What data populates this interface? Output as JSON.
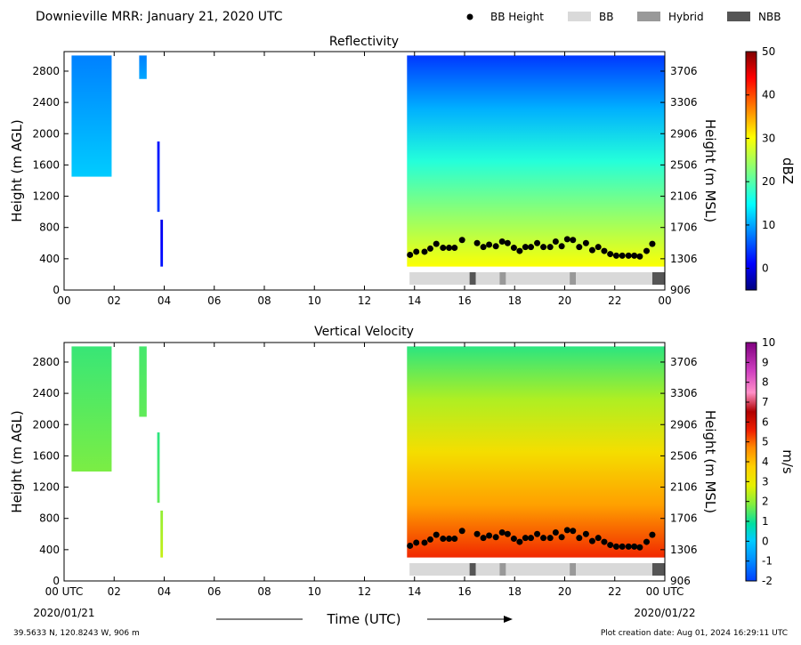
{
  "header": {
    "title": "Downieville MRR:  January 21, 2020 UTC",
    "legend": [
      {
        "label": "BB Height",
        "kind": "dot",
        "color": "#000000"
      },
      {
        "label": "BB",
        "kind": "box",
        "color": "#d9d9d9"
      },
      {
        "label": "Hybrid",
        "kind": "box",
        "color": "#999999"
      },
      {
        "label": "NBB",
        "kind": "box",
        "color": "#555555"
      }
    ]
  },
  "footer": {
    "location": "39.5633 N, 120.8243 W, 906 m",
    "creation": "Plot creation date: Aug 01, 2024 16:29:11 UTC",
    "xlabel": "Time (UTC)",
    "date_start": "2020/01/21",
    "date_end": "2020/01/22"
  },
  "chart_data": [
    {
      "type": "heatmap",
      "title": "Reflectivity",
      "ylabel": "Height (m AGL)",
      "ylabel_right": "Height (m MSL)",
      "colorbar_label": "dBZ",
      "colorbar_ticks": [
        "50",
        "40",
        "30",
        "20",
        "10",
        "0"
      ],
      "colorbar_range": [
        -5,
        50
      ],
      "colormap": "jet",
      "xlim": [
        0,
        24
      ],
      "ylim": [
        0,
        3050
      ],
      "x_ticks": [
        "00",
        "02",
        "04",
        "06",
        "08",
        "10",
        "12",
        "14",
        "16",
        "18",
        "20",
        "22",
        "00"
      ],
      "y_ticks_left": [
        "0",
        "400",
        "800",
        "1200",
        "1600",
        "2000",
        "2400",
        "2800"
      ],
      "y_ticks_right": [
        "906",
        "1306",
        "1706",
        "2106",
        "2506",
        "2906",
        "3306",
        "3706"
      ],
      "precip_segments": [
        {
          "start": 0.3,
          "end": 1.9,
          "base_m": 1450,
          "top_m": 3000,
          "base_dbz": 12,
          "top_dbz": 8
        },
        {
          "start": 3.0,
          "end": 3.3,
          "base_m": 2700,
          "top_m": 3000,
          "base_dbz": 10,
          "top_dbz": 8
        },
        {
          "start": 3.72,
          "end": 3.82,
          "base_m": 1000,
          "top_m": 1900,
          "base_dbz": 4,
          "top_dbz": 2
        },
        {
          "start": 3.85,
          "end": 3.95,
          "base_m": 300,
          "top_m": 900,
          "base_dbz": 2,
          "top_dbz": 0
        },
        {
          "start": 13.7,
          "end": 24.0,
          "base_m": 300,
          "top_m": 3000,
          "base_dbz": 30,
          "top_dbz": 4
        }
      ],
      "bb_heights": {
        "x": [
          13.82,
          14.07,
          14.4,
          14.63,
          14.87,
          15.14,
          15.38,
          15.6,
          15.9,
          16.5,
          16.75,
          16.98,
          17.25,
          17.5,
          17.72,
          17.97,
          18.2,
          18.43,
          18.65,
          18.9,
          19.15,
          19.42,
          19.64,
          19.88,
          20.1,
          20.33,
          20.58,
          20.85,
          21.1,
          21.34,
          21.58,
          21.82,
          22.06,
          22.3,
          22.55,
          22.78,
          23.0,
          23.27,
          23.5
        ],
        "y": [
          450,
          490,
          490,
          530,
          590,
          540,
          540,
          540,
          640,
          600,
          550,
          580,
          560,
          620,
          600,
          540,
          500,
          550,
          550,
          600,
          550,
          550,
          620,
          560,
          650,
          640,
          550,
          600,
          510,
          550,
          500,
          460,
          440,
          440,
          440,
          440,
          430,
          500,
          590
        ]
      },
      "bb_class": [
        {
          "start": 13.8,
          "end": 16.2,
          "class": "BB"
        },
        {
          "start": 16.2,
          "end": 16.45,
          "class": "NBB"
        },
        {
          "start": 16.45,
          "end": 17.4,
          "class": "BB"
        },
        {
          "start": 17.4,
          "end": 17.65,
          "class": "Hybrid"
        },
        {
          "start": 17.65,
          "end": 20.2,
          "class": "BB"
        },
        {
          "start": 20.2,
          "end": 20.45,
          "class": "Hybrid"
        },
        {
          "start": 20.45,
          "end": 23.5,
          "class": "BB"
        },
        {
          "start": 23.5,
          "end": 24.0,
          "class": "NBB"
        }
      ]
    },
    {
      "type": "heatmap",
      "title": "Vertical Velocity",
      "ylabel": "Height (m AGL)",
      "ylabel_right": "Height (m MSL)",
      "colorbar_label": "m/s",
      "colorbar_ticks": [
        "10",
        "9",
        "8",
        "7",
        "6",
        "5",
        "4",
        "3",
        "2",
        "1",
        "0",
        "-1",
        "-2"
      ],
      "colorbar_range": [
        -2,
        10
      ],
      "colormap": "velocity",
      "xlim": [
        0,
        24
      ],
      "ylim": [
        0,
        3050
      ],
      "x_ticks": [
        "00 UTC",
        "02",
        "04",
        "06",
        "08",
        "10",
        "12",
        "14",
        "16",
        "18",
        "20",
        "22",
        "00 UTC"
      ],
      "y_ticks_left": [
        "0",
        "400",
        "800",
        "1200",
        "1600",
        "2000",
        "2400",
        "2800"
      ],
      "y_ticks_right": [
        "906",
        "1306",
        "1706",
        "2106",
        "2506",
        "2906",
        "3306",
        "3706"
      ],
      "precip_segments": [
        {
          "start": 0.3,
          "end": 1.9,
          "base_m": 1400,
          "top_m": 3000,
          "base_vel": 1.8,
          "top_vel": 1.3
        },
        {
          "start": 3.0,
          "end": 3.3,
          "base_m": 2100,
          "top_m": 3000,
          "base_vel": 1.6,
          "top_vel": 1.4
        },
        {
          "start": 3.72,
          "end": 3.82,
          "base_m": 1000,
          "top_m": 1900,
          "base_vel": 1.6,
          "top_vel": 1.2
        },
        {
          "start": 3.85,
          "end": 3.95,
          "base_m": 300,
          "top_m": 900,
          "base_vel": 2.5,
          "top_vel": 2.0
        },
        {
          "start": 13.7,
          "end": 24.0,
          "base_m": 300,
          "top_m": 3000,
          "base_vel": 5.5,
          "top_vel": 1.2
        }
      ],
      "bb_heights": {
        "x": [
          13.82,
          14.07,
          14.4,
          14.63,
          14.87,
          15.14,
          15.38,
          15.6,
          15.9,
          16.5,
          16.75,
          16.98,
          17.25,
          17.5,
          17.72,
          17.97,
          18.2,
          18.43,
          18.65,
          18.9,
          19.15,
          19.42,
          19.64,
          19.88,
          20.1,
          20.33,
          20.58,
          20.85,
          21.1,
          21.34,
          21.58,
          21.82,
          22.06,
          22.3,
          22.55,
          22.78,
          23.0,
          23.27,
          23.5
        ],
        "y": [
          450,
          490,
          490,
          530,
          590,
          540,
          540,
          540,
          640,
          600,
          550,
          580,
          560,
          620,
          600,
          540,
          500,
          550,
          550,
          600,
          550,
          550,
          620,
          560,
          650,
          640,
          550,
          600,
          510,
          550,
          500,
          460,
          440,
          440,
          440,
          440,
          430,
          500,
          590
        ]
      },
      "bb_class": [
        {
          "start": 13.8,
          "end": 16.2,
          "class": "BB"
        },
        {
          "start": 16.2,
          "end": 16.45,
          "class": "NBB"
        },
        {
          "start": 16.45,
          "end": 17.4,
          "class": "BB"
        },
        {
          "start": 17.4,
          "end": 17.65,
          "class": "Hybrid"
        },
        {
          "start": 17.65,
          "end": 20.2,
          "class": "BB"
        },
        {
          "start": 20.2,
          "end": 20.45,
          "class": "Hybrid"
        },
        {
          "start": 20.45,
          "end": 23.5,
          "class": "BB"
        },
        {
          "start": 23.5,
          "end": 24.0,
          "class": "NBB"
        }
      ]
    }
  ]
}
